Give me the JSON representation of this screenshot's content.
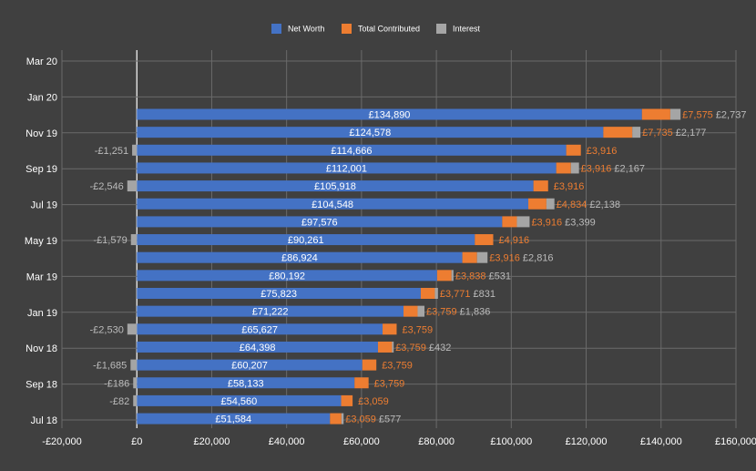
{
  "chart_data": {
    "type": "bar",
    "orientation": "horizontal",
    "stacked": true,
    "legend": {
      "placement": "top",
      "items": [
        {
          "name": "Net Worth",
          "color": "#4472C4"
        },
        {
          "name": "Total Contributed",
          "color": "#ED7D31"
        },
        {
          "name": "Interest",
          "color": "#A5A5A5"
        }
      ]
    },
    "y_axis_labels": [
      "Mar 20",
      "Jan 20",
      "Nov 19",
      "Sep 19",
      "Jul 19",
      "May 19",
      "Mar 19",
      "Jan 19",
      "Nov 18",
      "Sep 18",
      "Jul 18"
    ],
    "x_tick_labels": [
      "-£20,000",
      "£0",
      "£20,000",
      "£40,000",
      "£60,000",
      "£80,000",
      "£100,000",
      "£120,000",
      "£140,000",
      "£160,000"
    ],
    "xlim": [
      -20000,
      160000
    ],
    "grid": true,
    "colors": {
      "background": "#404040",
      "grid": "#6a6a6a",
      "net_worth": "#4472C4",
      "contributed": "#ED7D31",
      "interest": "#A5A5A5"
    },
    "rows": [
      {
        "net_worth": 134890,
        "net_worth_label": "£134,890",
        "contributed": 7575,
        "contributed_label": "£7,575",
        "interest": 2737,
        "interest_label": "£2,737"
      },
      {
        "net_worth": 124578,
        "net_worth_label": "£124,578",
        "contributed": 7735,
        "contributed_label": "£7,735",
        "interest": 2177,
        "interest_label": "£2,177"
      },
      {
        "net_worth": 114666,
        "net_worth_label": "£114,666",
        "contributed": 3916,
        "contributed_label": "£3,916",
        "interest": -1251,
        "interest_label": "-£1,251"
      },
      {
        "net_worth": 112001,
        "net_worth_label": "£112,001",
        "contributed": 3916,
        "contributed_label": "£3,916",
        "interest": 2167,
        "interest_label": "£2,167"
      },
      {
        "net_worth": 105918,
        "net_worth_label": "£105,918",
        "contributed": 3916,
        "contributed_label": "£3,916",
        "interest": -2546,
        "interest_label": "-£2,546"
      },
      {
        "net_worth": 104548,
        "net_worth_label": "£104,548",
        "contributed": 4834,
        "contributed_label": "£4,834",
        "interest": 2138,
        "interest_label": "£2,138"
      },
      {
        "net_worth": 97576,
        "net_worth_label": "£97,576",
        "contributed": 3916,
        "contributed_label": "£3,916",
        "interest": 3399,
        "interest_label": "£3,399"
      },
      {
        "net_worth": 90261,
        "net_worth_label": "£90,261",
        "contributed": 4916,
        "contributed_label": "£4,916",
        "interest": -1579,
        "interest_label": "-£1,579"
      },
      {
        "net_worth": 86924,
        "net_worth_label": "£86,924",
        "contributed": 3916,
        "contributed_label": "£3,916",
        "interest": 2816,
        "interest_label": "£2,816"
      },
      {
        "net_worth": 80192,
        "net_worth_label": "£80,192",
        "contributed": 3838,
        "contributed_label": "£3,838",
        "interest": 531,
        "interest_label": "£531"
      },
      {
        "net_worth": 75823,
        "net_worth_label": "£75,823",
        "contributed": 3771,
        "contributed_label": "£3,771",
        "interest": 831,
        "interest_label": "£831"
      },
      {
        "net_worth": 71222,
        "net_worth_label": "£71,222",
        "contributed": 3759,
        "contributed_label": "£3,759",
        "interest": 1836,
        "interest_label": "£1,836"
      },
      {
        "net_worth": 65627,
        "net_worth_label": "£65,627",
        "contributed": 3759,
        "contributed_label": "£3,759",
        "interest": -2530,
        "interest_label": "-£2,530"
      },
      {
        "net_worth": 64398,
        "net_worth_label": "£64,398",
        "contributed": 3759,
        "contributed_label": "£3,759",
        "interest": 432,
        "interest_label": "£432"
      },
      {
        "net_worth": 60207,
        "net_worth_label": "£60,207",
        "contributed": 3759,
        "contributed_label": "£3,759",
        "interest": -1685,
        "interest_label": "-£1,685"
      },
      {
        "net_worth": 58133,
        "net_worth_label": "£58,133",
        "contributed": 3759,
        "contributed_label": "£3,759",
        "interest": -186,
        "interest_label": "-£186"
      },
      {
        "net_worth": 54560,
        "net_worth_label": "£54,560",
        "contributed": 3059,
        "contributed_label": "£3,059",
        "interest": -82,
        "interest_label": "-£82"
      },
      {
        "net_worth": 51584,
        "net_worth_label": "£51,584",
        "contributed": 3059,
        "contributed_label": "£3,059",
        "interest": 577,
        "interest_label": "£577"
      }
    ]
  }
}
